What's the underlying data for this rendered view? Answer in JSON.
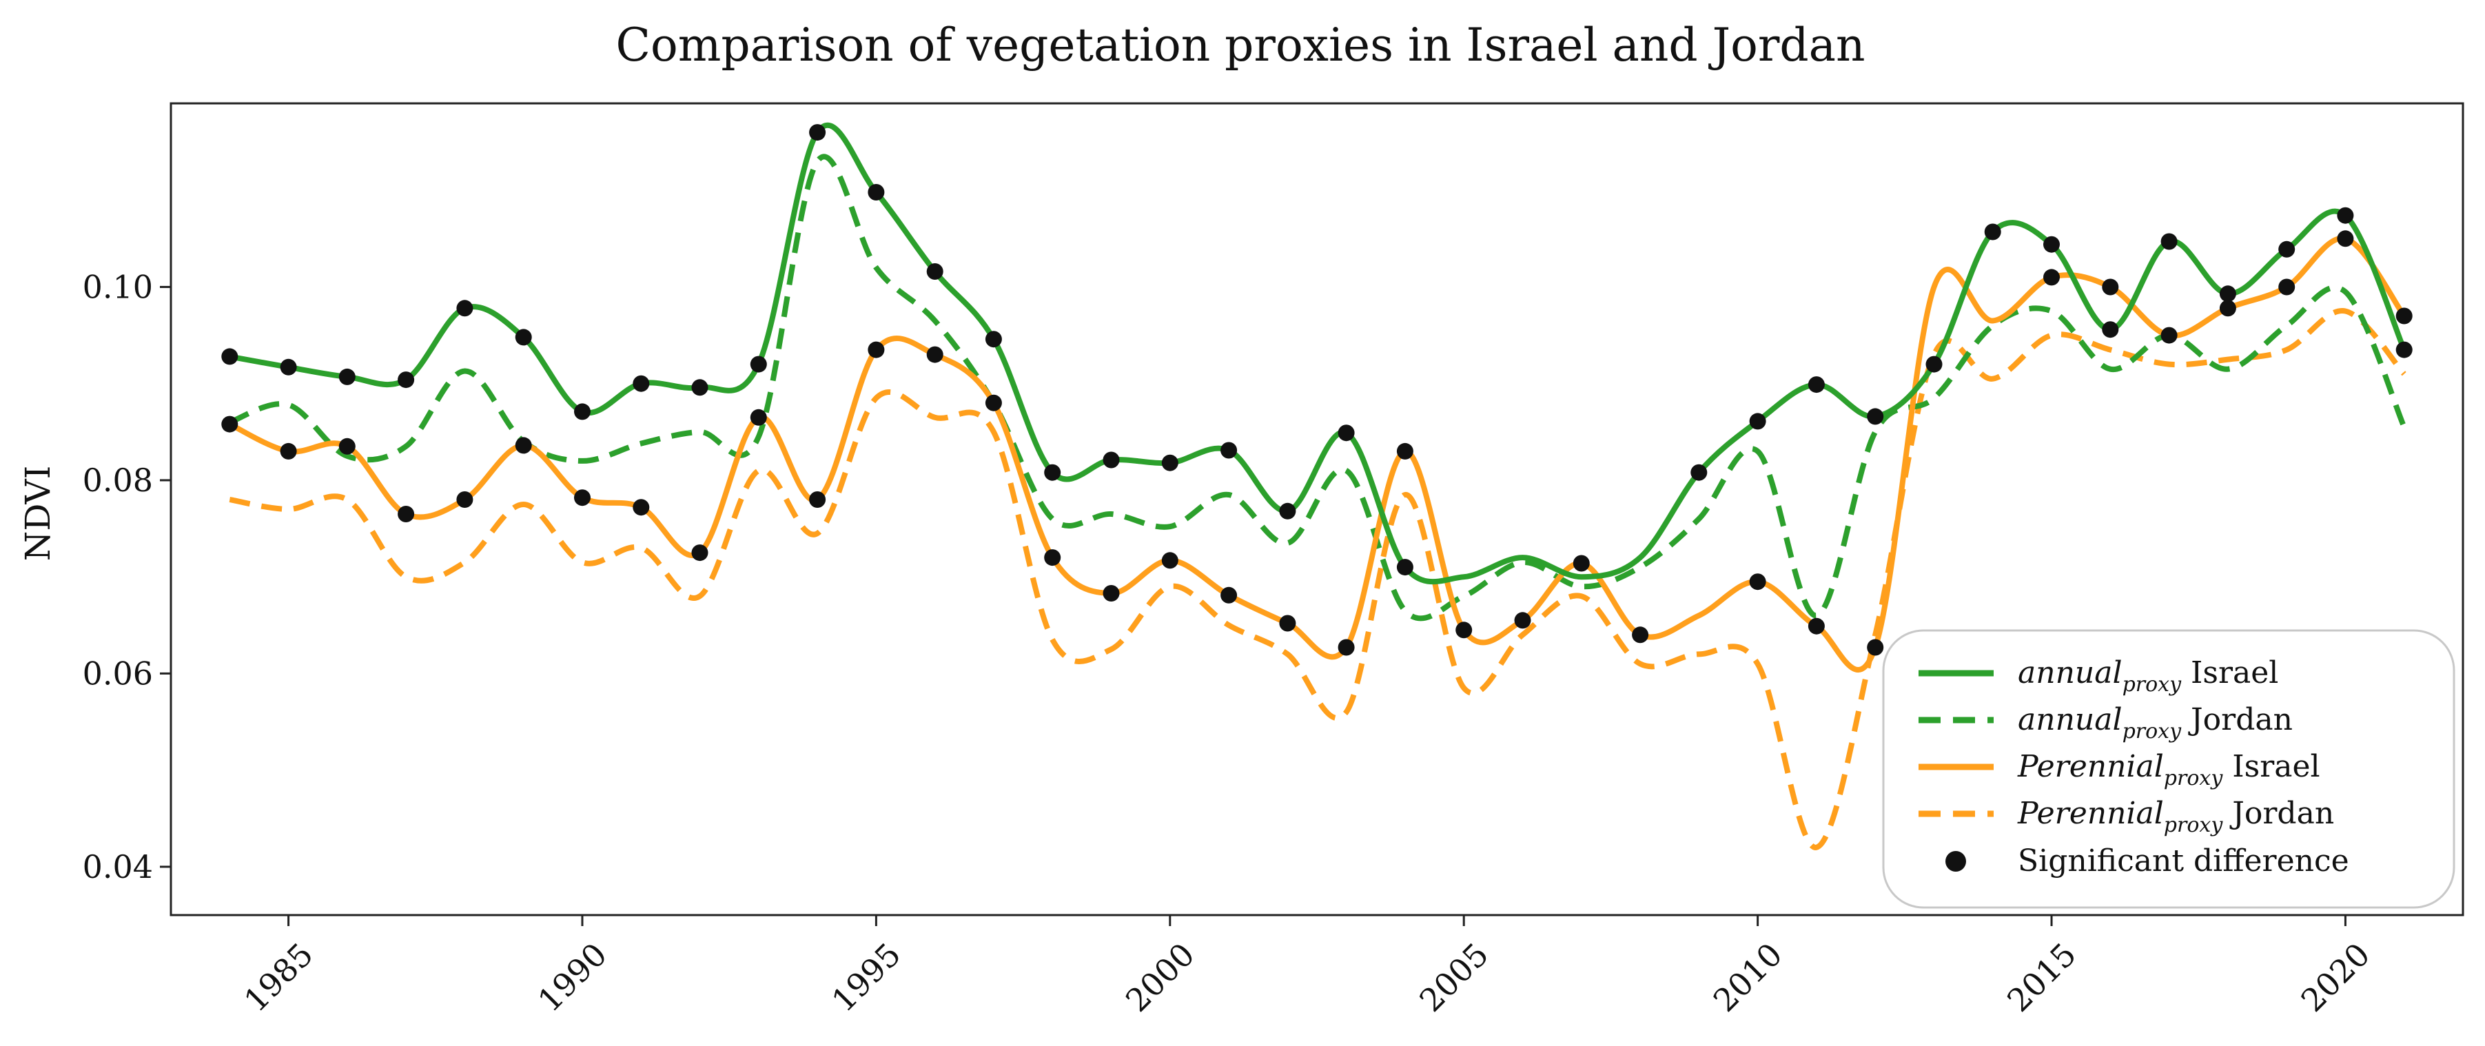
{
  "chart_data": {
    "type": "line",
    "title": "Comparison of vegetation proxies in Israel and Jordan",
    "xlabel": "",
    "ylabel": "NDVI",
    "xlim": [
      1983,
      2022
    ],
    "ylim": [
      0.035,
      0.119
    ],
    "xticks": [
      1985,
      1990,
      1995,
      2000,
      2005,
      2010,
      2015,
      2020
    ],
    "yticks": [
      0.04,
      0.06,
      0.08,
      0.1
    ],
    "ytick_labels": [
      "0.04",
      "0.06",
      "0.08",
      "0.10"
    ],
    "grid": false,
    "legend_position": "lower-right",
    "x": [
      1984,
      1985,
      1986,
      1987,
      1988,
      1989,
      1990,
      1991,
      1992,
      1993,
      1994,
      1995,
      1996,
      1997,
      1998,
      1999,
      2000,
      2001,
      2002,
      2003,
      2004,
      2005,
      2006,
      2007,
      2008,
      2009,
      2010,
      2011,
      2012,
      2013,
      2014,
      2015,
      2016,
      2017,
      2018,
      2019,
      2020,
      2021
    ],
    "series": [
      {
        "name": "annual proxy Israel",
        "legend_main": "annual",
        "legend_sub": "proxy",
        "legend_suffix": " Israel",
        "color": "#2ca02c",
        "dash": "solid",
        "values": [
          0.0928,
          0.0917,
          0.0907,
          0.0904,
          0.0978,
          0.0948,
          0.0871,
          0.09,
          0.0896,
          0.092,
          0.116,
          0.1098,
          0.1016,
          0.0946,
          0.0808,
          0.0821,
          0.0818,
          0.0831,
          0.0768,
          0.0849,
          0.071,
          0.07,
          0.072,
          0.07,
          0.072,
          0.0808,
          0.0861,
          0.0899,
          0.0866,
          0.092,
          0.1057,
          0.1044,
          0.0956,
          0.1047,
          0.0993,
          0.1039,
          0.1074,
          0.0935
        ]
      },
      {
        "name": "annual proxy Jordan",
        "legend_main": "annual",
        "legend_sub": "proxy",
        "legend_suffix": " Jordan",
        "color": "#2ca02c",
        "dash": "dashed",
        "values": [
          0.086,
          0.0878,
          0.0825,
          0.0835,
          0.0913,
          0.084,
          0.082,
          0.0838,
          0.085,
          0.0845,
          0.113,
          0.102,
          0.0965,
          0.088,
          0.076,
          0.0765,
          0.0752,
          0.0785,
          0.0735,
          0.081,
          0.0665,
          0.068,
          0.0715,
          0.069,
          0.071,
          0.076,
          0.083,
          0.066,
          0.085,
          0.0885,
          0.096,
          0.0975,
          0.0915,
          0.095,
          0.0915,
          0.096,
          0.0995,
          0.0855
        ]
      },
      {
        "name": "Perennial proxy Israel",
        "legend_main": "Perennial",
        "legend_sub": "proxy",
        "legend_suffix": " Israel",
        "color": "#ff9f1c",
        "dash": "solid",
        "values": [
          0.0858,
          0.083,
          0.0835,
          0.0765,
          0.078,
          0.0836,
          0.0782,
          0.0772,
          0.0725,
          0.0865,
          0.078,
          0.0935,
          0.093,
          0.088,
          0.072,
          0.0683,
          0.0717,
          0.0681,
          0.0652,
          0.0627,
          0.083,
          0.0645,
          0.0655,
          0.0714,
          0.064,
          0.066,
          0.0695,
          0.0649,
          0.0627,
          0.1,
          0.0965,
          0.101,
          0.1,
          0.095,
          0.0978,
          0.1,
          0.105,
          0.097
        ]
      },
      {
        "name": "Perennial proxy Jordan",
        "legend_main": "Perennial",
        "legend_sub": "proxy",
        "legend_suffix": "  Jordan",
        "color": "#ff9f1c",
        "dash": "dashed",
        "values": [
          0.078,
          0.077,
          0.078,
          0.07,
          0.0715,
          0.0775,
          0.0715,
          0.073,
          0.068,
          0.081,
          0.0745,
          0.0885,
          0.0865,
          0.085,
          0.0635,
          0.0625,
          0.069,
          0.065,
          0.062,
          0.056,
          0.0785,
          0.0585,
          0.064,
          0.068,
          0.061,
          0.062,
          0.061,
          0.042,
          0.064,
          0.093,
          0.0905,
          0.095,
          0.0935,
          0.092,
          0.0925,
          0.0935,
          0.0975,
          0.091
        ]
      }
    ],
    "significant_difference": {
      "label": "Significant difference",
      "color": "#111111",
      "points": [
        [
          1984,
          0.0928
        ],
        [
          1985,
          0.0917
        ],
        [
          1986,
          0.0907
        ],
        [
          1987,
          0.0904
        ],
        [
          1988,
          0.0978
        ],
        [
          1989,
          0.0948
        ],
        [
          1990,
          0.0871
        ],
        [
          1991,
          0.09
        ],
        [
          1992,
          0.0896
        ],
        [
          1993,
          0.092
        ],
        [
          1994,
          0.116
        ],
        [
          1995,
          0.1098
        ],
        [
          1996,
          0.1016
        ],
        [
          1997,
          0.0946
        ],
        [
          1998,
          0.0808
        ],
        [
          1999,
          0.0821
        ],
        [
          2000,
          0.0818
        ],
        [
          2001,
          0.0831
        ],
        [
          2002,
          0.0768
        ],
        [
          2003,
          0.0849
        ],
        [
          2004,
          0.071
        ],
        [
          2007,
          0.0714
        ],
        [
          2009,
          0.0808
        ],
        [
          2010,
          0.0861
        ],
        [
          2011,
          0.0899
        ],
        [
          2012,
          0.0866
        ],
        [
          2013,
          0.092
        ],
        [
          2014,
          0.1057
        ],
        [
          2015,
          0.1044
        ],
        [
          2016,
          0.0956
        ],
        [
          2017,
          0.1047
        ],
        [
          2018,
          0.0993
        ],
        [
          2019,
          0.1039
        ],
        [
          2020,
          0.1074
        ],
        [
          2021,
          0.097
        ],
        [
          1984,
          0.0858
        ],
        [
          1985,
          0.083
        ],
        [
          1986,
          0.0835
        ],
        [
          1987,
          0.0765
        ],
        [
          1988,
          0.078
        ],
        [
          1989,
          0.0836
        ],
        [
          1990,
          0.0782
        ],
        [
          1991,
          0.0772
        ],
        [
          1992,
          0.0725
        ],
        [
          1993,
          0.0865
        ],
        [
          1994,
          0.078
        ],
        [
          1995,
          0.0935
        ],
        [
          1996,
          0.093
        ],
        [
          1997,
          0.088
        ],
        [
          1998,
          0.072
        ],
        [
          1999,
          0.0683
        ],
        [
          2000,
          0.0717
        ],
        [
          2001,
          0.0681
        ],
        [
          2002,
          0.0652
        ],
        [
          2003,
          0.0627
        ],
        [
          2004,
          0.083
        ],
        [
          2005,
          0.0645
        ],
        [
          2006,
          0.0655
        ],
        [
          2008,
          0.064
        ],
        [
          2010,
          0.0695
        ],
        [
          2011,
          0.0649
        ],
        [
          2012,
          0.0627
        ],
        [
          2015,
          0.101
        ],
        [
          2016,
          0.1
        ],
        [
          2017,
          0.095
        ],
        [
          2018,
          0.0978
        ],
        [
          2019,
          0.1
        ],
        [
          2020,
          0.105
        ],
        [
          2021,
          0.0935
        ]
      ]
    }
  }
}
